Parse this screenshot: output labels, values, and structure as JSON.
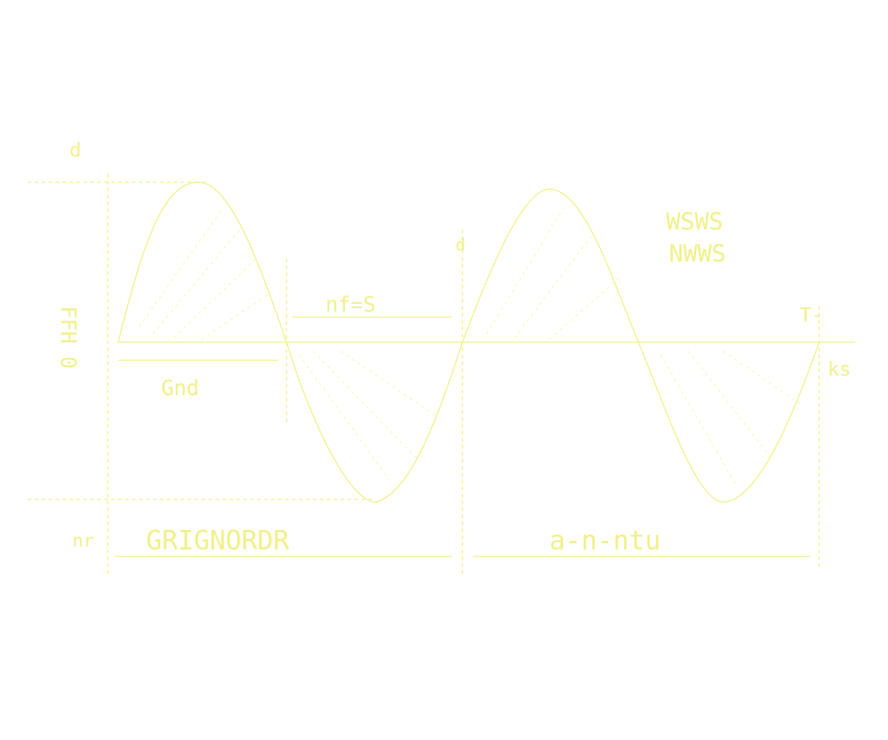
{
  "colors": {
    "background": "#ffffff",
    "ink": "#f2f08a",
    "hatch": "#f6f3a0"
  },
  "diagram": {
    "corner_mark": "d",
    "axis_mark_top": "d",
    "vertical_label": "FFH 0",
    "mid_label_top": "nf=S",
    "mid_label_bottom": "Gnd",
    "upper_right_label_1": "WSWS",
    "upper_right_label_2": "NWWS",
    "far_right_label": "T-",
    "right_small_label": "ks",
    "bottom_left_label": "nr",
    "interval_1_label": "GRIGNORDR",
    "interval_2_label": "a-n-ntu"
  }
}
